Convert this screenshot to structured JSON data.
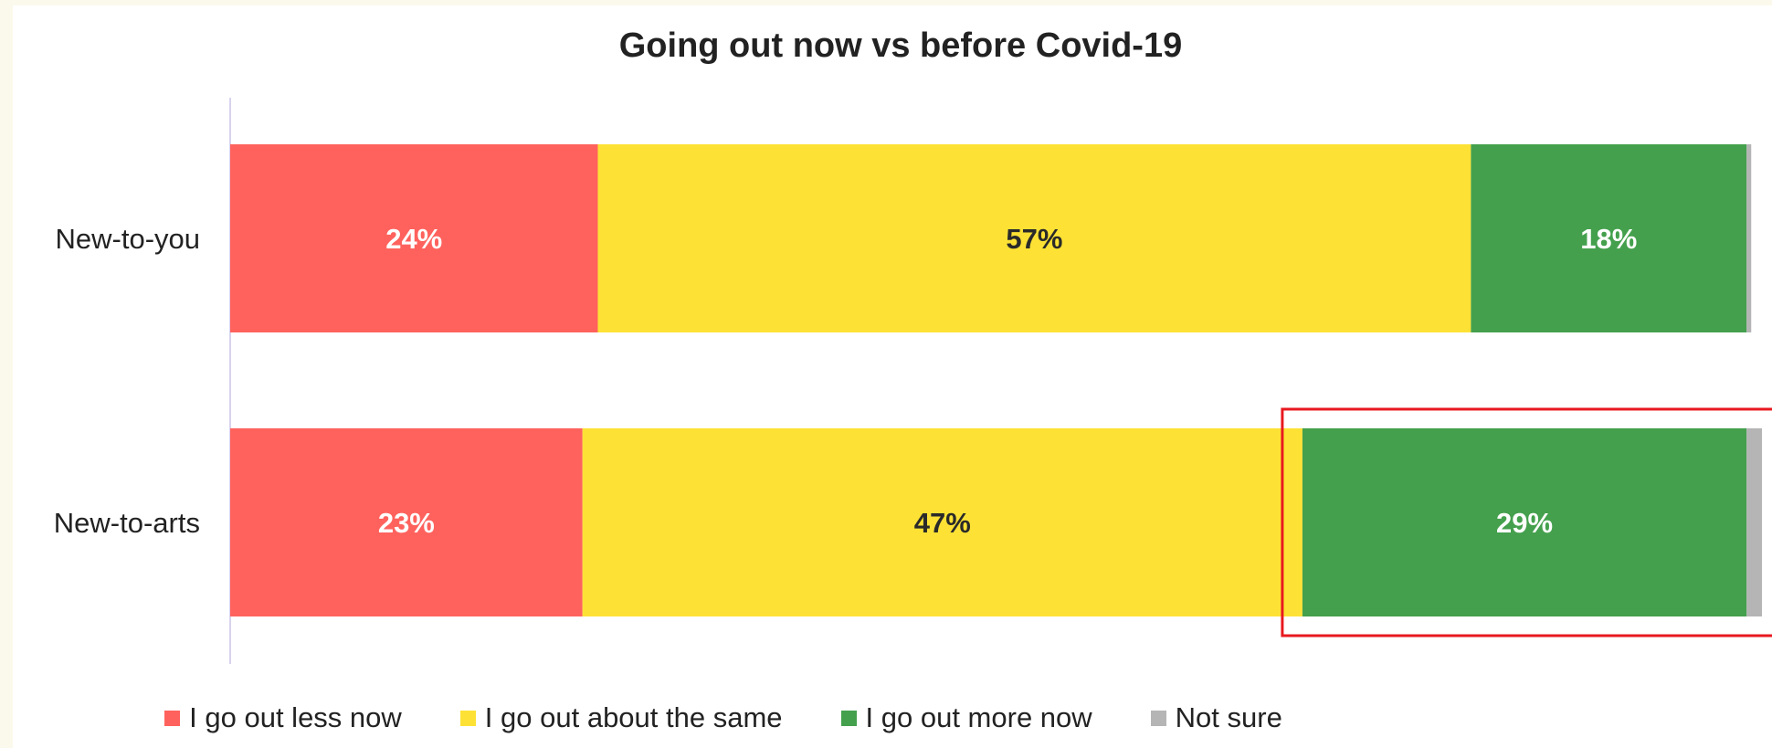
{
  "chart_data": {
    "type": "bar",
    "orientation": "horizontal",
    "stacked": true,
    "title": "Going out now vs before Covid-19",
    "categories": [
      "New-to-you",
      "New-to-arts"
    ],
    "series": [
      {
        "name": "I go out less now",
        "values": [
          24,
          23
        ],
        "labels": [
          "24%",
          "23%"
        ],
        "color": "#ff625d",
        "label_color": "#ffffff"
      },
      {
        "name": "I go out about the same",
        "values": [
          57,
          47
        ],
        "labels": [
          "57%",
          "47%"
        ],
        "color": "#fde235",
        "label_color": "#2a2a2a"
      },
      {
        "name": "I go out more now",
        "values": [
          18,
          29
        ],
        "labels": [
          "18%",
          "29%"
        ],
        "color": "#44a04d",
        "label_color": "#ffffff"
      },
      {
        "name": "Not sure",
        "values": [
          0.3,
          1
        ],
        "labels": [
          "",
          ""
        ],
        "color": "#b5b5b5",
        "label_color": "#ffffff"
      }
    ],
    "xlim": [
      0,
      100
    ],
    "grid": false,
    "legend_position": "bottom",
    "highlight": {
      "category": "New-to-arts",
      "series": [
        "I go out more now",
        "Not sure"
      ],
      "color": "#e8191f"
    }
  }
}
